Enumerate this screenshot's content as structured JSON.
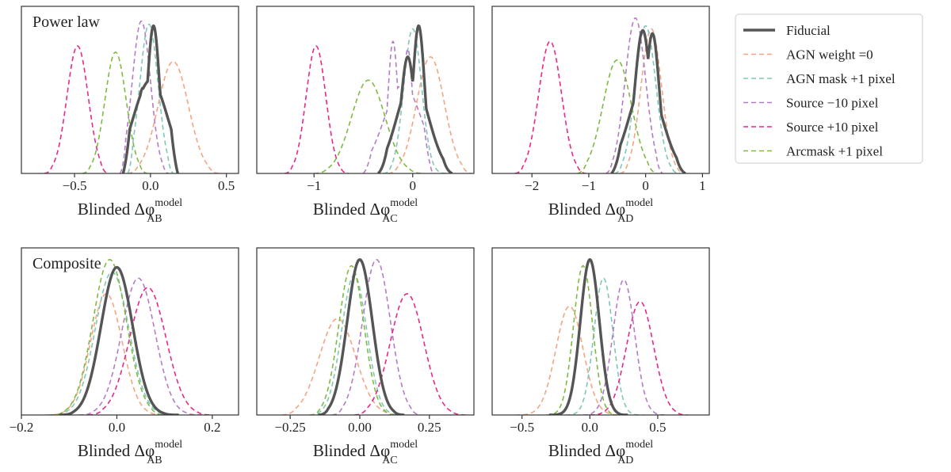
{
  "chart_data": {
    "type": "line",
    "description_free": true,
    "legend": {
      "placement": "right",
      "entries": [
        {
          "label": "Fiducial",
          "color": "#555555",
          "style": "solid"
        },
        {
          "label": "AGN weight =0",
          "color": "#f4a582",
          "style": "dashed"
        },
        {
          "label": "AGN mask +1 pixel",
          "color": "#7fc8b8",
          "style": "dashed"
        },
        {
          "label": "Source −10 pixel",
          "color": "#b47cc6",
          "style": "dashed"
        },
        {
          "label": "Source +10 pixel",
          "color": "#e7298a",
          "style": "dashed"
        },
        {
          "label": "Arcmask +1 pixel",
          "color": "#7fba42",
          "style": "dashed"
        }
      ]
    },
    "panels": [
      {
        "id": "pl-ab",
        "title": "Power law",
        "xlabel_base": "Blinded Δφ",
        "xlabel_sup": "model",
        "xlabel_sub": "AB",
        "xlim": [
          -0.85,
          0.58
        ],
        "xticks": [
          -0.5,
          0.0,
          0.5
        ],
        "xtick_labels": [
          "−0.5",
          "0.0",
          "0.5"
        ],
        "series": [
          {
            "center": 0.0,
            "width": 0.07,
            "peak": 1.0,
            "range": [
              -0.18,
              0.18
            ],
            "bimodal": [
              [
                -0.05,
                0.04,
                0.55
              ],
              [
                0.02,
                0.04,
                0.95
              ]
            ]
          },
          {
            "center": 0.15,
            "width": 0.1,
            "peak": 0.72,
            "range": [
              -0.15,
              0.45
            ]
          },
          {
            "center": -0.01,
            "width": 0.06,
            "peak": 0.96,
            "range": [
              -0.15,
              0.15
            ]
          },
          {
            "center": -0.06,
            "width": 0.06,
            "peak": 0.98,
            "range": [
              -0.2,
              0.12
            ]
          },
          {
            "center": -0.48,
            "width": 0.07,
            "peak": 0.82,
            "range": [
              -0.7,
              -0.28
            ]
          },
          {
            "center": -0.23,
            "width": 0.07,
            "peak": 0.78,
            "range": [
              -0.45,
              -0.02
            ]
          }
        ]
      },
      {
        "id": "pl-ac",
        "title": "",
        "xlabel_base": "Blinded Δφ",
        "xlabel_sup": "model",
        "xlabel_sub": "AC",
        "xlim": [
          -1.58,
          0.62
        ],
        "xticks": [
          -1.0,
          0.0
        ],
        "xtick_labels": [
          "−1",
          "0"
        ],
        "series": [
          {
            "center": 0.0,
            "width": 0.1,
            "peak": 1.0,
            "range": [
              -0.35,
              0.4
            ],
            "bimodal": [
              [
                -0.05,
                0.07,
                0.75
              ],
              [
                0.06,
                0.06,
                0.95
              ]
            ]
          },
          {
            "center": 0.18,
            "width": 0.14,
            "peak": 0.75,
            "range": [
              -0.25,
              0.6
            ]
          },
          {
            "center": 0.0,
            "width": 0.09,
            "peak": 0.93,
            "range": [
              -0.3,
              0.35
            ]
          },
          {
            "center": -0.1,
            "width": 0.12,
            "peak": 0.95,
            "range": [
              -0.5,
              0.2
            ],
            "bimodal": [
              [
                -0.2,
                0.05,
                0.85
              ],
              [
                -0.05,
                0.05,
                0.8
              ]
            ]
          },
          {
            "center": -0.98,
            "width": 0.1,
            "peak": 0.82,
            "range": [
              -1.3,
              -0.65
            ]
          },
          {
            "center": -0.45,
            "width": 0.17,
            "peak": 0.6,
            "range": [
              -1.0,
              0.1
            ]
          }
        ]
      },
      {
        "id": "pl-ad",
        "title": "",
        "xlabel_base": "Blinded Δφ",
        "xlabel_sup": "model",
        "xlabel_sub": "AD",
        "xlim": [
          -2.7,
          1.12
        ],
        "xticks": [
          -2.0,
          -1.0,
          0.0,
          1.0
        ],
        "xtick_labels": [
          "−2",
          "−1",
          "0",
          "1"
        ],
        "series": [
          {
            "center": 0.0,
            "width": 0.18,
            "peak": 1.0,
            "range": [
              -0.6,
              0.7
            ],
            "bimodal": [
              [
                -0.05,
                0.14,
                0.92
              ],
              [
                0.12,
                0.12,
                0.9
              ]
            ]
          },
          {
            "center": 0.1,
            "width": 0.18,
            "peak": 0.93,
            "range": [
              -0.45,
              0.7
            ]
          },
          {
            "center": 0.0,
            "width": 0.18,
            "peak": 0.95,
            "range": [
              -0.55,
              0.6
            ]
          },
          {
            "center": -0.18,
            "width": 0.18,
            "peak": 1.0,
            "range": [
              -0.7,
              0.3
            ]
          },
          {
            "center": -1.68,
            "width": 0.2,
            "peak": 0.85,
            "range": [
              -2.3,
              -1.05
            ]
          },
          {
            "center": -0.5,
            "width": 0.25,
            "peak": 0.73,
            "range": [
              -1.2,
              0.2
            ]
          }
        ]
      },
      {
        "id": "cp-ab",
        "title": "Composite",
        "xlabel_base": "Blinded Δφ",
        "xlabel_sup": "model",
        "xlabel_sub": "AB",
        "xlim": [
          -0.2,
          0.255
        ],
        "xticks": [
          -0.2,
          0.0,
          0.2
        ],
        "xtick_labels": [
          "−0.2",
          "0.0",
          "0.2"
        ],
        "series": [
          {
            "center": 0.0,
            "width": 0.033,
            "peak": 0.95,
            "range": [
              -0.12,
              0.13
            ]
          },
          {
            "center": -0.022,
            "width": 0.033,
            "peak": 0.78,
            "range": [
              -0.15,
              0.1
            ]
          },
          {
            "center": -0.01,
            "width": 0.035,
            "peak": 0.92,
            "range": [
              -0.14,
              0.12
            ]
          },
          {
            "center": 0.045,
            "width": 0.035,
            "peak": 0.88,
            "range": [
              -0.08,
              0.18
            ]
          },
          {
            "center": 0.065,
            "width": 0.038,
            "peak": 0.82,
            "range": [
              -0.06,
              0.2
            ]
          },
          {
            "center": -0.015,
            "width": 0.035,
            "peak": 1.0,
            "range": [
              -0.14,
              0.1
            ]
          }
        ]
      },
      {
        "id": "cp-ac",
        "title": "",
        "xlabel_base": "Blinded Δφ",
        "xlabel_sup": "model",
        "xlabel_sub": "AC",
        "xlim": [
          -0.37,
          0.41
        ],
        "xticks": [
          -0.25,
          0.0,
          0.25
        ],
        "xtick_labels": [
          "−0.25",
          "0.00",
          "0.25"
        ],
        "series": [
          {
            "center": 0.0,
            "width": 0.045,
            "peak": 1.0,
            "range": [
              -0.15,
              0.16
            ]
          },
          {
            "center": -0.08,
            "width": 0.065,
            "peak": 0.62,
            "range": [
              -0.28,
              0.15
            ]
          },
          {
            "center": -0.02,
            "width": 0.045,
            "peak": 0.9,
            "range": [
              -0.18,
              0.15
            ]
          },
          {
            "center": 0.06,
            "width": 0.05,
            "peak": 1.0,
            "range": [
              -0.1,
              0.22
            ]
          },
          {
            "center": 0.17,
            "width": 0.06,
            "peak": 0.78,
            "range": [
              -0.02,
              0.38
            ]
          },
          {
            "center": -0.03,
            "width": 0.045,
            "peak": 0.96,
            "range": [
              -0.18,
              0.13
            ]
          }
        ]
      },
      {
        "id": "cp-ad",
        "title": "",
        "xlabel_base": "Blinded Δφ",
        "xlabel_sup": "model",
        "xlabel_sub": "AD",
        "xlim": [
          -0.72,
          0.88
        ],
        "xticks": [
          -0.5,
          0.0,
          0.5
        ],
        "xtick_labels": [
          "−0.5",
          "0.0",
          "0.5"
        ],
        "series": [
          {
            "center": 0.0,
            "width": 0.07,
            "peak": 1.0,
            "range": [
              -0.3,
              0.28
            ]
          },
          {
            "center": -0.15,
            "width": 0.1,
            "peak": 0.7,
            "range": [
              -0.55,
              0.25
            ]
          },
          {
            "center": 0.1,
            "width": 0.07,
            "peak": 0.88,
            "range": [
              -0.18,
              0.4
            ]
          },
          {
            "center": 0.25,
            "width": 0.08,
            "peak": 0.87,
            "range": [
              -0.05,
              0.55
            ]
          },
          {
            "center": 0.37,
            "width": 0.1,
            "peak": 0.73,
            "range": [
              0.0,
              0.72
            ]
          },
          {
            "center": -0.05,
            "width": 0.07,
            "peak": 0.96,
            "range": [
              -0.32,
              0.2
            ]
          }
        ]
      }
    ]
  }
}
